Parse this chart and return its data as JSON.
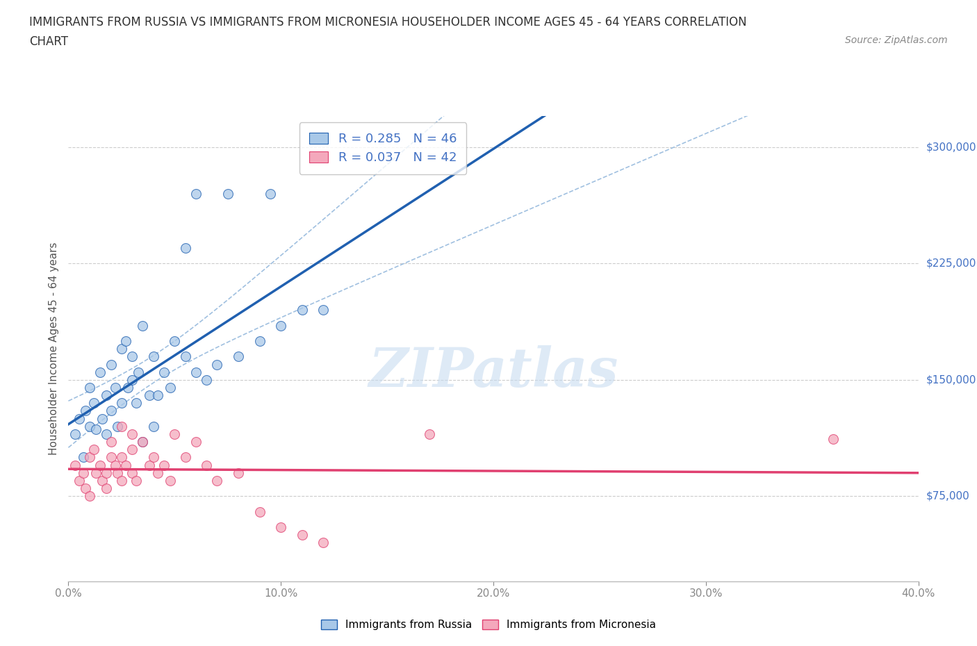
{
  "title_line1": "IMMIGRANTS FROM RUSSIA VS IMMIGRANTS FROM MICRONESIA HOUSEHOLDER INCOME AGES 45 - 64 YEARS CORRELATION",
  "title_line2": "CHART",
  "source_text": "Source: ZipAtlas.com",
  "ylabel": "Householder Income Ages 45 - 64 years",
  "x_min": 0.0,
  "x_max": 0.4,
  "y_min": 20000,
  "y_max": 320000,
  "y_ticks": [
    75000,
    150000,
    225000,
    300000
  ],
  "y_tick_labels": [
    "$75,000",
    "$150,000",
    "$225,000",
    "$300,000"
  ],
  "x_ticks": [
    0.0,
    0.1,
    0.2,
    0.3,
    0.4
  ],
  "x_tick_labels": [
    "0.0%",
    "10.0%",
    "20.0%",
    "30.0%",
    "40.0%"
  ],
  "russia_color": "#A8C8E8",
  "micronesia_color": "#F4A8BC",
  "russia_R": 0.285,
  "russia_N": 46,
  "micronesia_R": 0.037,
  "micronesia_N": 42,
  "russia_scatter_x": [
    0.003,
    0.005,
    0.007,
    0.008,
    0.01,
    0.01,
    0.012,
    0.013,
    0.015,
    0.016,
    0.018,
    0.018,
    0.02,
    0.02,
    0.022,
    0.023,
    0.025,
    0.025,
    0.027,
    0.028,
    0.03,
    0.03,
    0.032,
    0.033,
    0.035,
    0.038,
    0.04,
    0.042,
    0.045,
    0.048,
    0.05,
    0.055,
    0.06,
    0.065,
    0.07,
    0.08,
    0.09,
    0.1,
    0.11,
    0.12,
    0.06,
    0.075,
    0.095,
    0.055,
    0.04,
    0.035
  ],
  "russia_scatter_y": [
    115000,
    125000,
    100000,
    130000,
    145000,
    120000,
    135000,
    118000,
    155000,
    125000,
    140000,
    115000,
    160000,
    130000,
    145000,
    120000,
    170000,
    135000,
    175000,
    145000,
    150000,
    165000,
    135000,
    155000,
    185000,
    140000,
    165000,
    140000,
    155000,
    145000,
    175000,
    165000,
    155000,
    150000,
    160000,
    165000,
    175000,
    185000,
    195000,
    195000,
    270000,
    270000,
    270000,
    235000,
    120000,
    110000
  ],
  "micronesia_scatter_x": [
    0.003,
    0.005,
    0.007,
    0.008,
    0.01,
    0.01,
    0.012,
    0.013,
    0.015,
    0.016,
    0.018,
    0.018,
    0.02,
    0.02,
    0.022,
    0.023,
    0.025,
    0.025,
    0.027,
    0.03,
    0.03,
    0.032,
    0.035,
    0.038,
    0.04,
    0.042,
    0.045,
    0.048,
    0.05,
    0.055,
    0.06,
    0.065,
    0.07,
    0.08,
    0.09,
    0.1,
    0.11,
    0.12,
    0.025,
    0.03,
    0.36,
    0.17
  ],
  "micronesia_scatter_y": [
    95000,
    85000,
    90000,
    80000,
    75000,
    100000,
    105000,
    90000,
    95000,
    85000,
    90000,
    80000,
    100000,
    110000,
    95000,
    90000,
    100000,
    85000,
    95000,
    90000,
    105000,
    85000,
    110000,
    95000,
    100000,
    90000,
    95000,
    85000,
    115000,
    100000,
    110000,
    95000,
    85000,
    90000,
    65000,
    55000,
    50000,
    45000,
    120000,
    115000,
    112000,
    115000
  ],
  "watermark_text": "ZIPatlas",
  "background_color": "#ffffff",
  "grid_color": "#cccccc",
  "russia_line_color": "#2060B0",
  "micronesia_line_color": "#E04070",
  "russia_conf_color": "#A0C0E0",
  "legend_fontsize": 13,
  "axis_label_fontsize": 11,
  "tick_label_fontsize": 11,
  "title_fontsize": 12
}
